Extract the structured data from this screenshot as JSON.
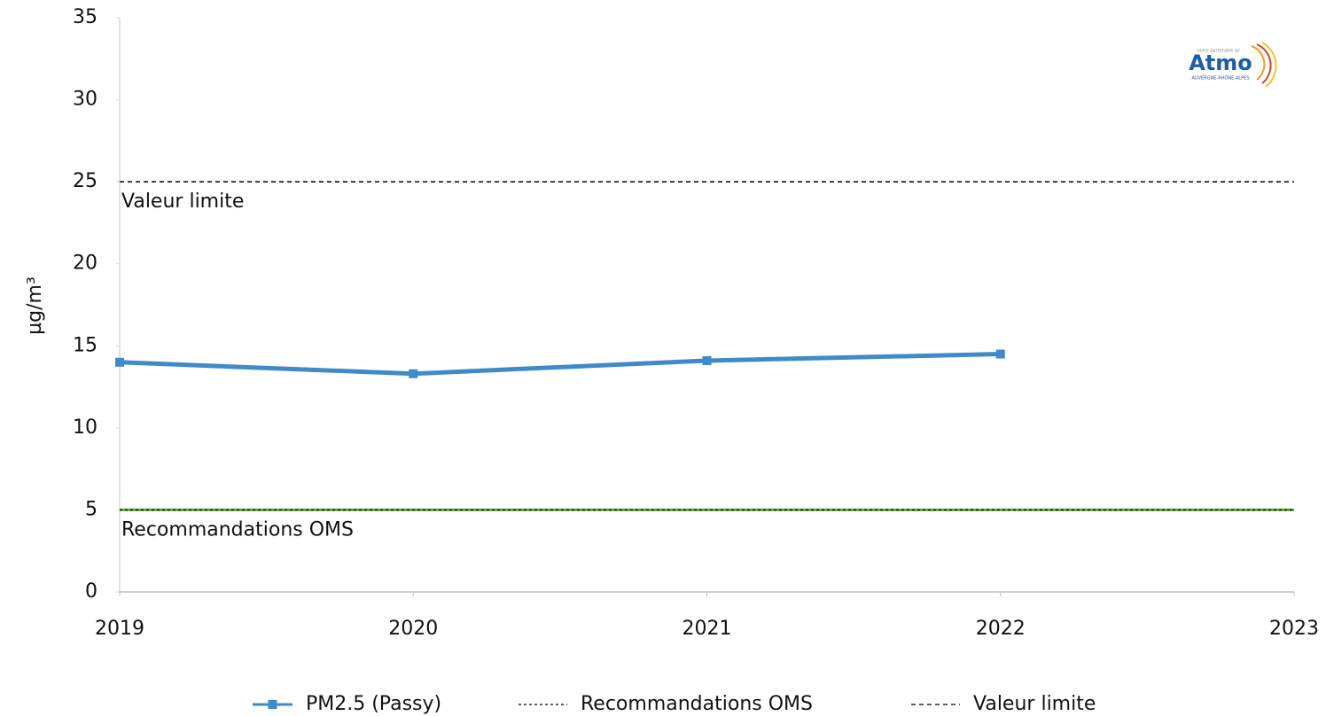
{
  "chart_data": {
    "type": "line",
    "y_label": "µg/m³",
    "x": [
      2019,
      2020,
      2021,
      2022,
      2023
    ],
    "xlim": [
      2019,
      2023
    ],
    "xticks": [
      2019,
      2020,
      2021,
      2022,
      2023
    ],
    "ylim": [
      0,
      35
    ],
    "yticks": [
      0,
      5,
      10,
      15,
      20,
      25,
      30,
      35
    ],
    "series": [
      {
        "name": "PM2.5 (Passy)",
        "color": "#3f8bc9",
        "values": [
          14.0,
          13.3,
          14.1,
          14.5,
          null
        ],
        "style": "solid",
        "marker": true
      },
      {
        "name": "Recommandations OMS",
        "color": "#5ca83a",
        "values": [
          5,
          5,
          5,
          5,
          5
        ],
        "style": "dotted",
        "marker": false
      },
      {
        "name": "Valeur limite",
        "color": "#000000",
        "values": [
          25,
          25,
          25,
          25,
          25
        ],
        "style": "dashed",
        "marker": false
      }
    ],
    "annotations": [
      {
        "text": "Valeur limite",
        "y": 25
      },
      {
        "text": "Recommandations OMS",
        "y": 5
      }
    ],
    "legend": "bottom"
  },
  "logo": {
    "tagline": "votre partenaire air",
    "name": "Atmo",
    "region": "AUVERGNE-RHÔNE-ALPES"
  }
}
